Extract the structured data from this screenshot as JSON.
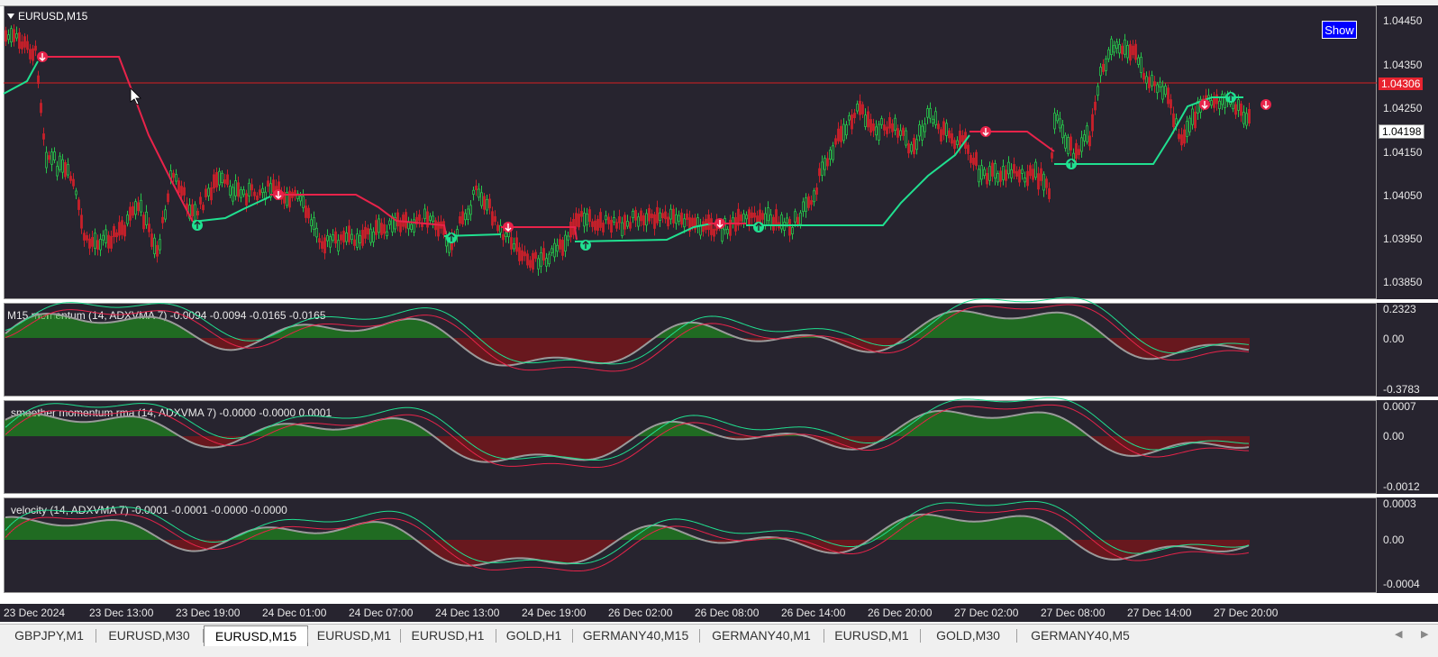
{
  "main_chart": {
    "title": "EURUSD,M15",
    "show_button": "Show",
    "price_labels": [
      "1.04450",
      "1.04350",
      "1.04250",
      "1.04150",
      "1.04050",
      "1.03950",
      "1.03850"
    ],
    "current_price_label": "1.04306",
    "bid_price_label": "1.04198"
  },
  "indicators": [
    {
      "title": "M15 momentum (14, ADXVMA 7) -0.0094 -0.0094 -0.0165 -0.0165",
      "scale": [
        "0.2323",
        "0.00",
        "-0.3783"
      ]
    },
    {
      "title": "smoother momentum rma (14, ADXVMA 7) -0.0000 -0.0000 0.0001",
      "scale": [
        "0.0007",
        "0.00",
        "-0.0012"
      ]
    },
    {
      "title": "velocity (14, ADXVMA 7) -0.0001 -0.0001 -0.0000 -0.0000",
      "scale": [
        "0.0003",
        "0.00",
        "-0.0004"
      ]
    }
  ],
  "time_labels": [
    "23 Dec 2024",
    "23 Dec 13:00",
    "23 Dec 19:00",
    "24 Dec 01:00",
    "24 Dec 07:00",
    "24 Dec 13:00",
    "24 Dec 19:00",
    "26 Dec 02:00",
    "26 Dec 08:00",
    "26 Dec 14:00",
    "26 Dec 20:00",
    "27 Dec 02:00",
    "27 Dec 08:00",
    "27 Dec 14:00",
    "27 Dec 20:00"
  ],
  "tabs": [
    "GBPJPY,M1",
    "EURUSD,M30",
    "EURUSD,M15",
    "EURUSD,M1",
    "EURUSD,H1",
    "GOLD,H1",
    "GERMANY40,M15",
    "GERMANY40,M1",
    "EURUSD,M1",
    "GOLD,M30",
    "GERMANY40,M5"
  ],
  "active_tab": "EURUSD,M15",
  "colors": {
    "background": "#27242f",
    "bull_line": "#20e090",
    "bear_line": "#e8234a",
    "hist_up": "#19b214",
    "hist_down": "#a80d0d",
    "osc_line": "#9a9a9a",
    "price_line": "#d62020"
  }
}
